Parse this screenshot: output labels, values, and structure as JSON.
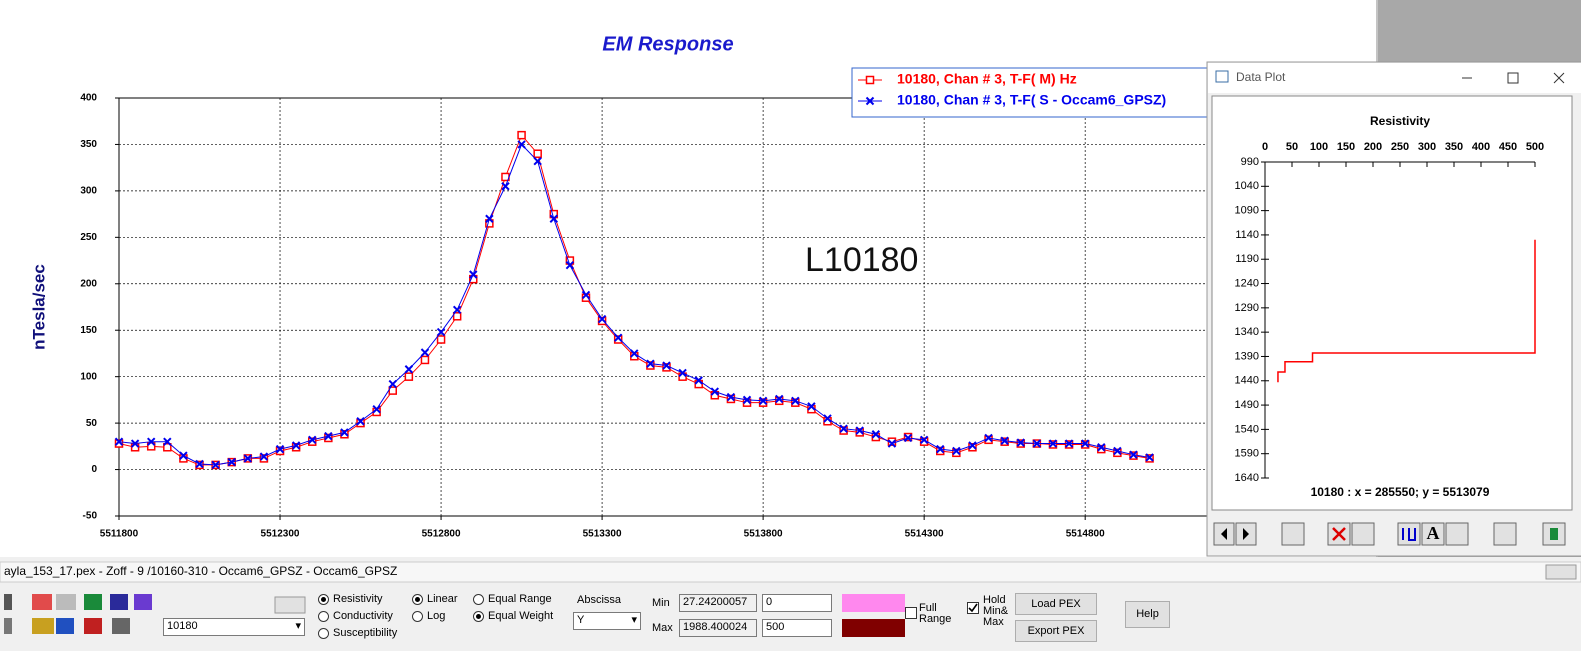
{
  "chart_data": [
    {
      "type": "line",
      "title": "EM Response",
      "y_label": "nTesla/sec",
      "annotation": "L10180",
      "x": [
        5511800,
        5511850,
        5511900,
        5511950,
        5512000,
        5512050,
        5512100,
        5512150,
        5512200,
        5512250,
        5512300,
        5512350,
        5512400,
        5512450,
        5512500,
        5512550,
        5512600,
        5512650,
        5512700,
        5512750,
        5512800,
        5512850,
        5512900,
        5512950,
        5513000,
        5513050,
        5513100,
        5513150,
        5513200,
        5513250,
        5513300,
        5513350,
        5513400,
        5513450,
        5513500,
        5513550,
        5513600,
        5513650,
        5513700,
        5513750,
        5513800,
        5513850,
        5513900,
        5513950,
        5514000,
        5514050,
        5514100,
        5514150,
        5514200,
        5514250,
        5514300,
        5514350,
        5514400,
        5514450,
        5514500,
        5514550,
        5514600,
        5514650,
        5514700,
        5514750,
        5514800,
        5514850,
        5514900,
        5514950,
        5515000
      ],
      "series": [
        {
          "name": "10180, Chan # 3, T-F( M) Hz",
          "color": "#ff0000",
          "marker": "square",
          "values": [
            28,
            24,
            25,
            24,
            12,
            5,
            5,
            8,
            12,
            12,
            20,
            24,
            30,
            34,
            38,
            50,
            62,
            85,
            100,
            118,
            140,
            165,
            205,
            265,
            315,
            360,
            340,
            275,
            225,
            185,
            160,
            140,
            122,
            112,
            110,
            100,
            92,
            80,
            76,
            72,
            72,
            74,
            72,
            65,
            52,
            42,
            40,
            35,
            30,
            35,
            30,
            20,
            18,
            24,
            32,
            30,
            28,
            28,
            27,
            27,
            27,
            22,
            18,
            15,
            12
          ]
        },
        {
          "name": "10180, Chan # 3, T-F( S - Occam6_GPSZ)",
          "color": "#0000ee",
          "marker": "x",
          "values": [
            30,
            28,
            30,
            30,
            15,
            6,
            5,
            8,
            12,
            14,
            22,
            26,
            32,
            36,
            40,
            52,
            65,
            92,
            108,
            126,
            148,
            172,
            210,
            270,
            305,
            350,
            332,
            270,
            220,
            188,
            162,
            142,
            125,
            114,
            112,
            104,
            96,
            84,
            78,
            75,
            74,
            76,
            74,
            68,
            55,
            44,
            42,
            38,
            28,
            34,
            32,
            22,
            20,
            26,
            34,
            31,
            29,
            28,
            28,
            28,
            28,
            24,
            20,
            16,
            13
          ]
        }
      ],
      "xlim": [
        5511800,
        5515200
      ],
      "xticks": [
        5511800,
        5512300,
        5512800,
        5513300,
        5513800,
        5514300,
        5514800
      ],
      "ylim": [
        -50,
        400
      ],
      "yticks": [
        -50,
        0,
        50,
        100,
        150,
        200,
        250,
        300,
        350,
        400
      ],
      "grid": true
    },
    {
      "type": "line",
      "title": "Resistivity",
      "color": "#ff0000",
      "x": [
        24,
        24,
        37,
        37,
        88,
        88,
        500,
        500
      ],
      "values": [
        1443,
        1422,
        1422,
        1401,
        1401,
        1383,
        1383,
        1150
      ],
      "xlim": [
        0,
        500
      ],
      "xticks": [
        0,
        50,
        100,
        150,
        200,
        250,
        300,
        350,
        400,
        450,
        500
      ],
      "x_axis_position": "top",
      "ylim": [
        990,
        1640
      ],
      "yticks": [
        990,
        1040,
        1090,
        1140,
        1190,
        1240,
        1290,
        1340,
        1390,
        1440,
        1490,
        1540,
        1590,
        1640
      ],
      "invert_y": true,
      "status": "10180 : x = 285550; y = 5513079"
    }
  ],
  "window": {
    "title": "Data Plot",
    "tool_letter": "A"
  },
  "status_bar": "ayla_153_17.pex - Zoff - 9 /10160-310 - Occam6_GPSZ - Occam6_GPSZ",
  "controls": {
    "line_combo": "10180",
    "property": [
      {
        "label": "Resistivity",
        "checked": true
      },
      {
        "label": "Conductivity",
        "checked": false
      },
      {
        "label": "Susceptibility",
        "checked": false
      }
    ],
    "scale": [
      {
        "label": "Linear",
        "checked": true
      },
      {
        "label": "Log",
        "checked": false
      }
    ],
    "weighting": [
      {
        "label": "Equal Range",
        "checked": false
      },
      {
        "label": "Equal Weight",
        "checked": true
      }
    ],
    "abscissa_label": "Abscissa",
    "abscissa": "Y",
    "min_label": "Min",
    "max_label": "Max",
    "min_value": "27.24200057",
    "max_value": "1988.400024",
    "min_input": "0",
    "max_input": "500",
    "min_color": "#ff88ee",
    "max_color": "#800000",
    "full_range": {
      "label": "Full Range",
      "checked": false
    },
    "hold": {
      "label": "Hold Min& Max",
      "checked": true
    },
    "load": "Load PEX",
    "export": "Export PEX",
    "help": "Help"
  }
}
